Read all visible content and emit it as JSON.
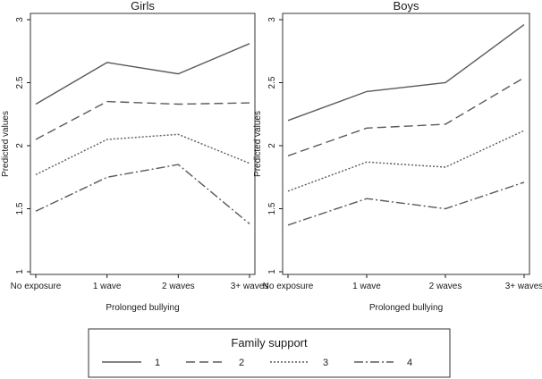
{
  "chart_data": [
    {
      "type": "line",
      "title": "Girls",
      "xlabel": "Prolonged bullying",
      "ylabel": "Predicted values",
      "categories": [
        "No exposure",
        "1 wave",
        "2 waves",
        "3+ waves"
      ],
      "yticks": [
        "1",
        "1.5",
        "2",
        "2.5",
        "3"
      ],
      "ylim": [
        1,
        3
      ],
      "series": [
        {
          "name": "1",
          "values": [
            2.33,
            2.66,
            2.57,
            2.81
          ]
        },
        {
          "name": "2",
          "values": [
            2.05,
            2.35,
            2.33,
            2.34
          ]
        },
        {
          "name": "3",
          "values": [
            1.77,
            2.05,
            2.09,
            1.86
          ]
        },
        {
          "name": "4",
          "values": [
            1.48,
            1.75,
            1.85,
            1.38
          ]
        }
      ]
    },
    {
      "type": "line",
      "title": "Boys",
      "xlabel": "Prolonged bullying",
      "ylabel": "Predicted values",
      "categories": [
        "No exposure",
        "1 wave",
        "2 waves",
        "3+ waves"
      ],
      "yticks": [
        "1",
        "1.5",
        "2",
        "2.5",
        "3"
      ],
      "ylim": [
        1,
        3
      ],
      "series": [
        {
          "name": "1",
          "values": [
            2.2,
            2.43,
            2.5,
            2.96
          ]
        },
        {
          "name": "2",
          "values": [
            1.92,
            2.14,
            2.17,
            2.54
          ]
        },
        {
          "name": "3",
          "values": [
            1.64,
            1.87,
            1.83,
            2.12
          ]
        },
        {
          "name": "4",
          "values": [
            1.37,
            1.58,
            1.5,
            1.71
          ]
        }
      ]
    }
  ],
  "legend": {
    "title": "Family support",
    "entries": [
      "1",
      "2",
      "3",
      "4"
    ]
  },
  "styles": {
    "line_color": "#5a5a5a",
    "axis_color": "#1a1a1a",
    "border_color": "#333333"
  }
}
